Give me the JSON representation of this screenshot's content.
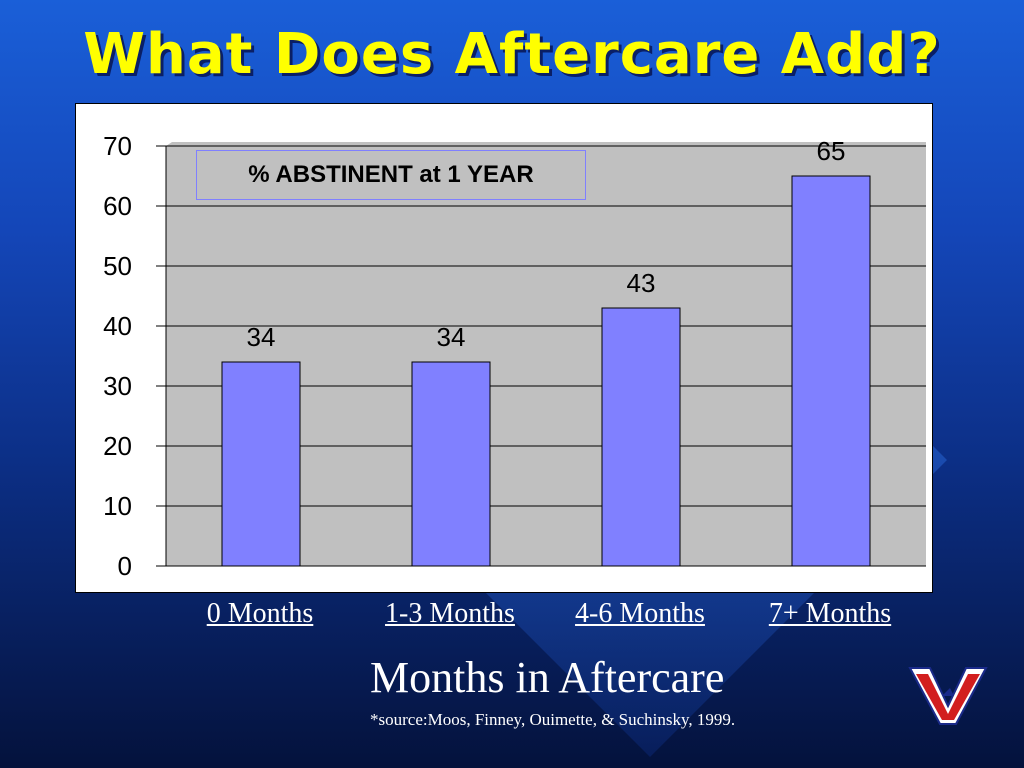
{
  "slide": {
    "title": "What Does Aftercare Add?",
    "source": "*source:Moos, Finney, Ouimette, & Suchinsky, 1999."
  },
  "chart_data": {
    "type": "bar",
    "title": "",
    "annotation": "% ABSTINENT at 1 YEAR",
    "categories": [
      "0 Months",
      "1-3 Months",
      "4-6 Months",
      "7+ Months"
    ],
    "values": [
      34,
      34,
      43,
      65
    ],
    "data_labels": [
      "34",
      "34",
      "43",
      "65"
    ],
    "xlabel": "Months in Aftercare",
    "ylabel": "",
    "ylim": [
      0,
      70
    ],
    "yticks": [
      0,
      10,
      20,
      30,
      40,
      50,
      60,
      70
    ],
    "grid": true,
    "colors": {
      "bar_fill": "#8080ff",
      "plot_background": "#c0c0c0",
      "gridline": "#000000"
    }
  },
  "logo": {
    "icon": "va-logo-icon"
  }
}
